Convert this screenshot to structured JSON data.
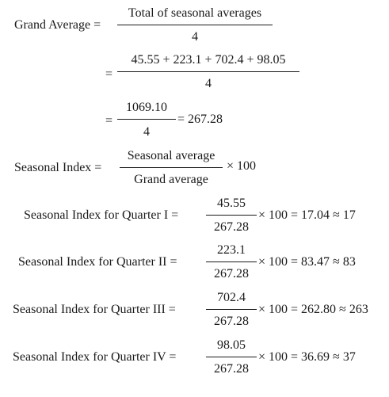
{
  "grand_average": {
    "label": "Grand Average =",
    "formula_numerator": "Total of seasonal averages",
    "formula_denominator": "4",
    "eq1": "=",
    "sum_numerator": "45.55 + 223.1 + 702.4 + 98.05",
    "sum_denominator": "4",
    "eq2": "=",
    "total_numerator": "1069.10",
    "total_denominator": "4",
    "result": "= 267.28"
  },
  "seasonal_index": {
    "label": "Seasonal Index =",
    "numerator": "Seasonal average",
    "denominator": "Grand average",
    "multiplier": "× 100"
  },
  "quarters": [
    {
      "label": "Seasonal Index for Quarter I =",
      "numerator": "45.55",
      "denominator": "267.28",
      "result": "× 100 = 17.04 ≈ 17"
    },
    {
      "label": "Seasonal Index for Quarter II =",
      "numerator": "223.1",
      "denominator": "267.28",
      "result": "× 100 = 83.47 ≈ 83"
    },
    {
      "label": "Seasonal Index for Quarter III =",
      "numerator": "702.4",
      "denominator": "267.28",
      "result": "× 100 = 262.80 ≈ 263"
    },
    {
      "label": "Seasonal Index for Quarter IV =",
      "numerator": "98.05",
      "denominator": "267.28",
      "result": "× 100 = 36.69 ≈ 37"
    }
  ]
}
